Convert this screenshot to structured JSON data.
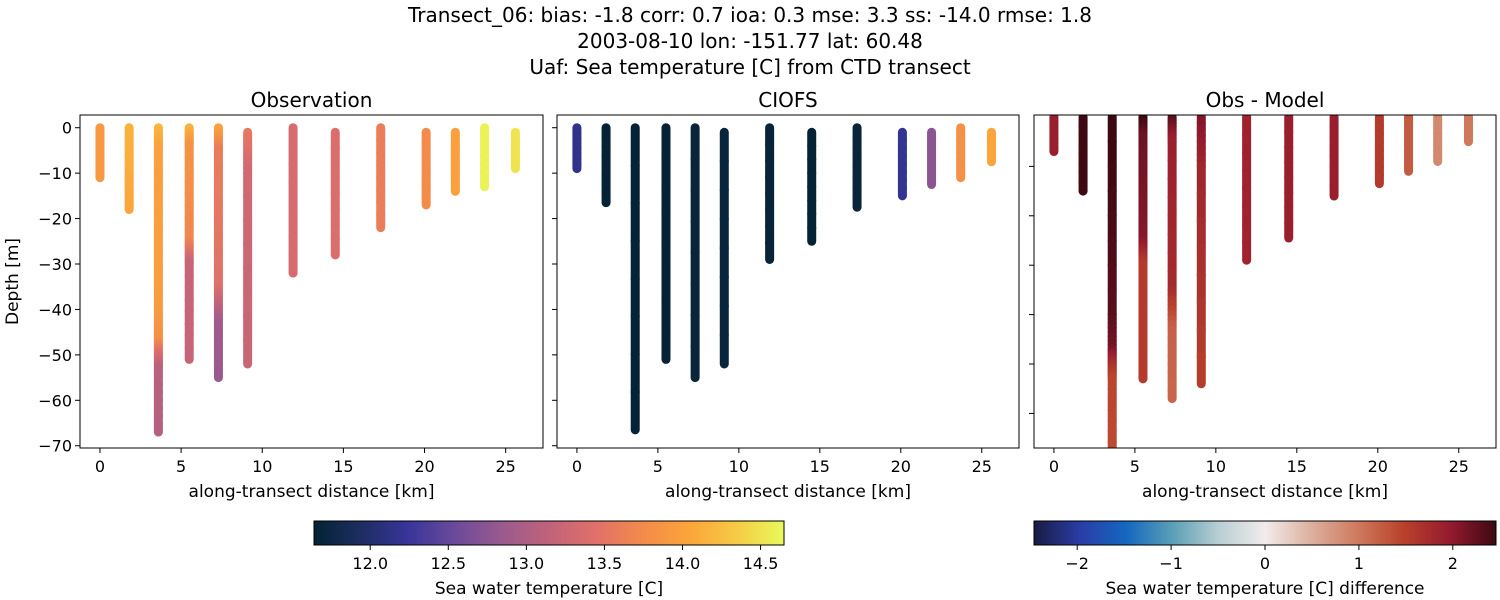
{
  "title_lines": [
    "Transect_06: bias: -1.8  corr: 0.7  ioa: 0.3  mse: 3.3  ss: -14.0  rmse: 1.8",
    "2003-08-10 lon: -151.77 lat: 60.48",
    "Uaf: Sea temperature [C] from CTD transect"
  ],
  "chart_data": [
    {
      "type": "scatter",
      "title": "Observation",
      "xlabel": "along-transect distance [km]",
      "ylabel": "Depth [m]",
      "xlim": [
        -1.23,
        27.3
      ],
      "ylim": [
        -70.5,
        2.8
      ],
      "xticks": [
        0,
        5,
        10,
        15,
        20,
        25
      ],
      "yticks": [
        0,
        -10,
        -20,
        -30,
        -40,
        -50,
        -60,
        -70
      ],
      "color_by": "temperature",
      "profiles": [
        {
          "x": 0,
          "points": [
            [
              0,
              13.9
            ],
            [
              -11,
              13.9
            ]
          ]
        },
        {
          "x": 1.8,
          "points": [
            [
              0,
              14.15
            ],
            [
              -10,
              14.1
            ],
            [
              -18,
              14.05
            ]
          ]
        },
        {
          "x": 3.6,
          "points": [
            [
              0,
              14.2
            ],
            [
              -5,
              14.0
            ],
            [
              -40,
              13.95
            ],
            [
              -47,
              13.8
            ],
            [
              -50,
              13.4
            ],
            [
              -53,
              13.1
            ],
            [
              -67,
              13.05
            ]
          ]
        },
        {
          "x": 5.5,
          "points": [
            [
              0,
              14.2
            ],
            [
              -4,
              13.85
            ],
            [
              -25,
              13.7
            ],
            [
              -30,
              13.2
            ],
            [
              -51,
              13.2
            ]
          ]
        },
        {
          "x": 7.3,
          "points": [
            [
              0,
              14.05
            ],
            [
              -5,
              13.6
            ],
            [
              -35,
              13.45
            ],
            [
              -43,
              12.9
            ],
            [
              -55,
              12.85
            ]
          ]
        },
        {
          "x": 9.1,
          "points": [
            [
              -1,
              13.55
            ],
            [
              -10,
              13.3
            ],
            [
              -52,
              13.2
            ]
          ]
        },
        {
          "x": 11.9,
          "points": [
            [
              0,
              13.35
            ],
            [
              -32,
              13.35
            ]
          ]
        },
        {
          "x": 14.5,
          "points": [
            [
              -1,
              13.4
            ],
            [
              -28,
              13.4
            ]
          ]
        },
        {
          "x": 17.3,
          "points": [
            [
              0,
              13.6
            ],
            [
              -22,
              13.6
            ]
          ]
        },
        {
          "x": 20.1,
          "points": [
            [
              -1,
              13.75
            ],
            [
              -17,
              13.75
            ]
          ]
        },
        {
          "x": 21.9,
          "points": [
            [
              -1,
              14.0
            ],
            [
              -14,
              14.0
            ]
          ]
        },
        {
          "x": 23.7,
          "points": [
            [
              0,
              14.6
            ],
            [
              -13,
              14.6
            ]
          ]
        },
        {
          "x": 25.6,
          "points": [
            [
              -1,
              14.5
            ],
            [
              -9,
              14.5
            ]
          ]
        }
      ]
    },
    {
      "type": "scatter",
      "title": "CIOFS",
      "xlabel": "along-transect distance [km]",
      "xlim": [
        -1.23,
        27.3
      ],
      "ylim": [
        -70.5,
        2.8
      ],
      "xticks": [
        0,
        5,
        10,
        15,
        20,
        25
      ],
      "color_by": "temperature",
      "profiles": [
        {
          "x": 0,
          "points": [
            [
              0,
              12.15
            ],
            [
              -9,
              12.15
            ]
          ]
        },
        {
          "x": 1.8,
          "points": [
            [
              0,
              11.65
            ],
            [
              -16.5,
              11.65
            ]
          ]
        },
        {
          "x": 3.6,
          "points": [
            [
              0,
              11.65
            ],
            [
              -66.5,
              11.65
            ]
          ]
        },
        {
          "x": 5.5,
          "points": [
            [
              0,
              11.65
            ],
            [
              -51,
              11.65
            ]
          ]
        },
        {
          "x": 7.3,
          "points": [
            [
              0,
              11.7
            ],
            [
              -55,
              11.7
            ]
          ]
        },
        {
          "x": 9.1,
          "points": [
            [
              -1,
              11.7
            ],
            [
              -52,
              11.7
            ]
          ]
        },
        {
          "x": 11.9,
          "points": [
            [
              0,
              11.68
            ],
            [
              -29,
              11.68
            ]
          ]
        },
        {
          "x": 14.5,
          "points": [
            [
              -1,
              11.65
            ],
            [
              -25,
              11.65
            ]
          ]
        },
        {
          "x": 17.3,
          "points": [
            [
              0,
              11.7
            ],
            [
              -17.5,
              11.7
            ]
          ]
        },
        {
          "x": 20.1,
          "points": [
            [
              -1,
              12.2
            ],
            [
              -15,
              12.2
            ]
          ]
        },
        {
          "x": 21.9,
          "points": [
            [
              -1,
              12.75
            ],
            [
              -12.5,
              12.75
            ]
          ]
        },
        {
          "x": 23.7,
          "points": [
            [
              0,
              13.8
            ],
            [
              -11,
              13.8
            ]
          ]
        },
        {
          "x": 25.6,
          "points": [
            [
              -1,
              14.05
            ],
            [
              -7.5,
              14.05
            ]
          ]
        }
      ]
    },
    {
      "type": "scatter",
      "title": "Obs - Model",
      "xlabel": "along-transect distance [km]",
      "xlim": [
        -1.23,
        27.3
      ],
      "ylim": [
        -67,
        0.4
      ],
      "xticks": [
        0,
        5,
        10,
        15,
        20,
        25
      ],
      "yticks": [
        -10,
        -20,
        -30,
        -40,
        -50,
        -60
      ],
      "color_by": "difference",
      "profiles": [
        {
          "x": 0,
          "points": [
            [
              0,
              1.9
            ],
            [
              -7,
              1.9
            ]
          ]
        },
        {
          "x": 1.8,
          "points": [
            [
              0,
              2.45
            ],
            [
              -15,
              2.45
            ]
          ]
        },
        {
          "x": 3.6,
          "points": [
            [
              0,
              2.5
            ],
            [
              -40,
              2.3
            ],
            [
              -47,
              2.15
            ],
            [
              -50,
              1.75
            ],
            [
              -53,
              1.45
            ],
            [
              -70,
              1.4
            ]
          ]
        },
        {
          "x": 5.5,
          "points": [
            [
              0,
              2.5
            ],
            [
              -4,
              2.2
            ],
            [
              -25,
              2.05
            ],
            [
              -30,
              1.55
            ],
            [
              -53,
              1.55
            ]
          ]
        },
        {
          "x": 7.3,
          "points": [
            [
              0,
              2.35
            ],
            [
              -5,
              1.9
            ],
            [
              -35,
              1.75
            ],
            [
              -43,
              1.2
            ],
            [
              -57,
              1.15
            ]
          ]
        },
        {
          "x": 9.1,
          "points": [
            [
              0,
              2.1
            ],
            [
              -10,
              1.85
            ],
            [
              -54,
              1.5
            ]
          ]
        },
        {
          "x": 11.9,
          "points": [
            [
              0,
              1.85
            ],
            [
              -29,
              1.85
            ]
          ]
        },
        {
          "x": 14.5,
          "points": [
            [
              0,
              1.9
            ],
            [
              -24.5,
              1.9
            ]
          ]
        },
        {
          "x": 17.3,
          "points": [
            [
              0,
              1.9
            ],
            [
              -16,
              1.9
            ]
          ]
        },
        {
          "x": 20.1,
          "points": [
            [
              0,
              1.55
            ],
            [
              -13.5,
              1.55
            ]
          ]
        },
        {
          "x": 21.9,
          "points": [
            [
              0,
              1.25
            ],
            [
              -11,
              1.25
            ]
          ]
        },
        {
          "x": 23.7,
          "points": [
            [
              0,
              0.85
            ],
            [
              -9,
              0.85
            ]
          ]
        },
        {
          "x": 25.6,
          "points": [
            [
              0,
              1.0
            ],
            [
              -5,
              1.0
            ]
          ]
        }
      ]
    }
  ],
  "colorbars": [
    {
      "label": "Sea water temperature [C]",
      "range": [
        11.64,
        14.65
      ],
      "ticks": [
        "12.0",
        "12.5",
        "13.0",
        "13.5",
        "14.0",
        "14.5"
      ],
      "colormap": [
        "#042333",
        "#1d2d62",
        "#38359a",
        "#6b4a9a",
        "#9a5a8f",
        "#c0637a",
        "#e0706a",
        "#f38b4a",
        "#fba53a",
        "#f6cb45",
        "#e8fa5b"
      ]
    },
    {
      "label": "Sea water temperature [C] difference",
      "range": [
        -2.46,
        2.46
      ],
      "ticks": [
        "−2",
        "−1",
        "0",
        "1",
        "2"
      ],
      "tick_values": [
        -2,
        -1,
        0,
        1,
        2
      ],
      "colormap": [
        "#181c43",
        "#2a3da6",
        "#1567c0",
        "#5a9fb6",
        "#b9ced3",
        "#f1ecec",
        "#dcb09f",
        "#cf7a5e",
        "#b9412b",
        "#951a2f",
        "#3c0912"
      ]
    }
  ]
}
